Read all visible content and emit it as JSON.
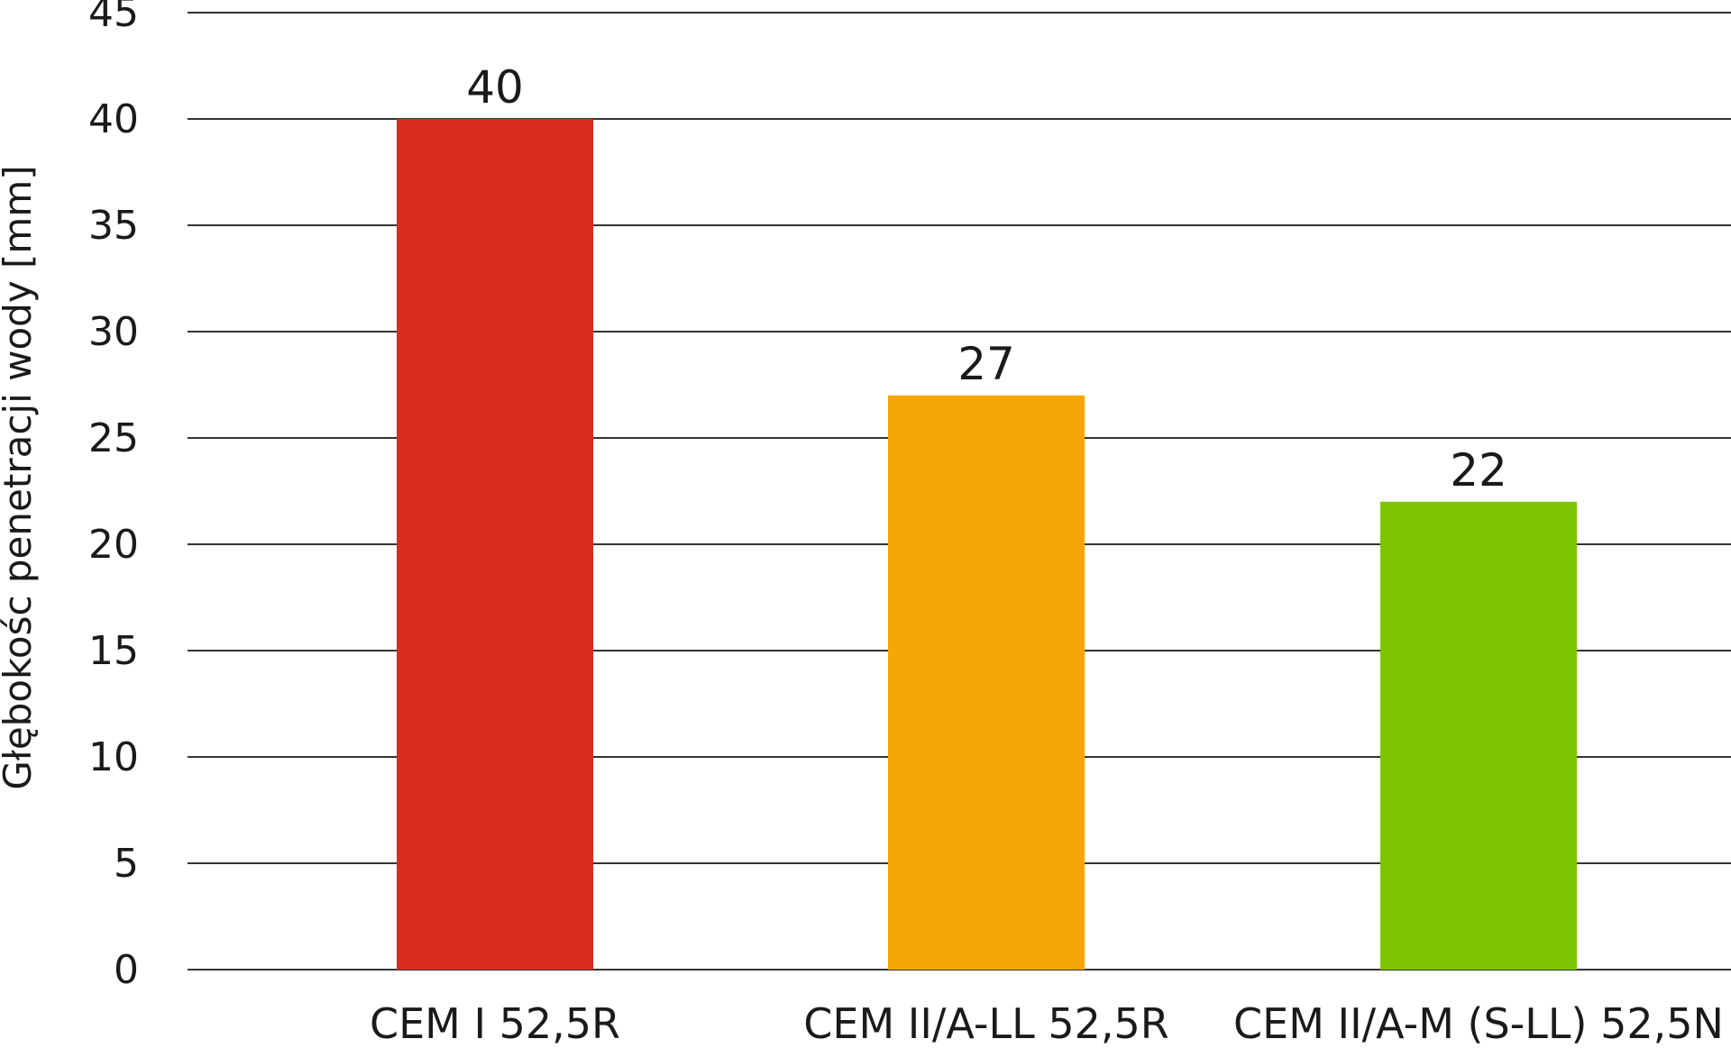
{
  "chart_data": {
    "type": "bar",
    "categories": [
      "CEM I 52,5R",
      "CEM II/A-LL 52,5R",
      "CEM II/A-M (S-LL) 52,5N"
    ],
    "values": [
      40,
      27,
      22
    ],
    "data_labels": [
      "40",
      "27",
      "22"
    ],
    "colors": [
      "#d92c1f",
      "#f5a507",
      "#7dc500"
    ],
    "title": "",
    "xlabel": "",
    "ylabel": "Głębokośc penetracji wody [mm]",
    "ylim": [
      0,
      45
    ],
    "yticks": [
      0,
      5,
      10,
      15,
      20,
      25,
      30,
      35,
      40,
      45
    ],
    "grid": true,
    "legend": "none"
  }
}
